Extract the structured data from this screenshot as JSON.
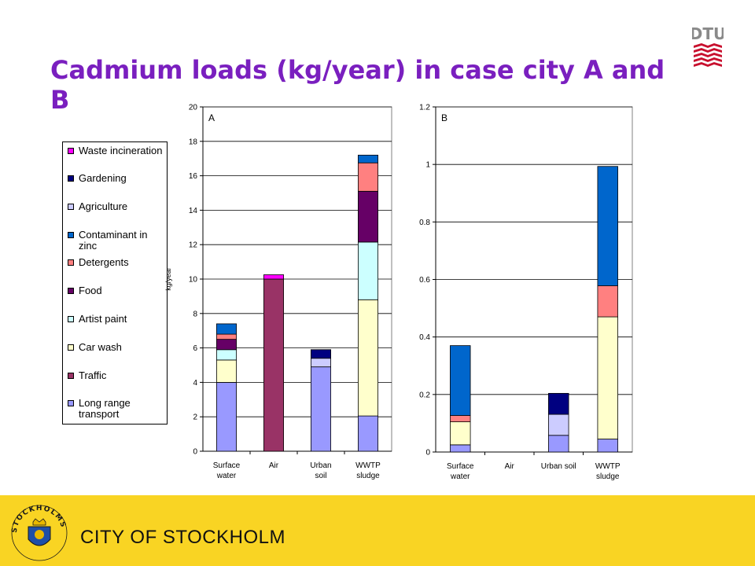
{
  "title": "Cadmium loads (kg/year) in case city A and B",
  "logo": {
    "text": "DTU",
    "color": "#c8102e"
  },
  "footer": {
    "text": "CITY OF STOCKHOLM",
    "bg": "#f9d423",
    "crest_text": "STOCKHOLMS STAD"
  },
  "legend": [
    {
      "label": "Waste incineration",
      "color": "#ff00ff"
    },
    {
      "label": "Gardening",
      "color": "#000080"
    },
    {
      "label": "Agriculture",
      "color": "#ccccff"
    },
    {
      "label": "Contaminant in zinc",
      "color": "#0066cc"
    },
    {
      "label": "Detergents",
      "color": "#ff8080"
    },
    {
      "label": "Food",
      "color": "#660066"
    },
    {
      "label": "Artist paint",
      "color": "#ccffff"
    },
    {
      "label": "Car wash",
      "color": "#ffffcc"
    },
    {
      "label": "Traffic",
      "color": "#993366"
    },
    {
      "label": "Long range transport",
      "color": "#9999ff"
    }
  ],
  "chart_data": [
    {
      "type": "bar",
      "stacked": true,
      "panel_label": "A",
      "ylabel": "kg/year",
      "ylim": [
        0,
        20
      ],
      "yticks": [
        0,
        2,
        4,
        6,
        8,
        10,
        12,
        14,
        16,
        18,
        20
      ],
      "ytick_labels": [
        "0",
        "2",
        "4",
        "6",
        "8",
        "10",
        "12",
        "14",
        "16",
        "18",
        "20"
      ],
      "grid": true,
      "categories": [
        [
          "Surface",
          "water"
        ],
        [
          "Air"
        ],
        [
          "Urban",
          "soil"
        ],
        [
          "WWTP",
          "sludge"
        ]
      ],
      "series": [
        {
          "name": "Long range transport",
          "values": [
            4.0,
            0,
            4.9,
            2.05
          ]
        },
        {
          "name": "Traffic",
          "values": [
            0,
            10.0,
            0,
            0
          ]
        },
        {
          "name": "Car wash",
          "values": [
            1.3,
            0,
            0,
            6.75
          ]
        },
        {
          "name": "Artist paint",
          "values": [
            0.6,
            0,
            0,
            3.35
          ]
        },
        {
          "name": "Food",
          "values": [
            0.6,
            0,
            0,
            2.95
          ]
        },
        {
          "name": "Detergents",
          "values": [
            0.3,
            0,
            0,
            1.65
          ]
        },
        {
          "name": "Contaminant in zinc",
          "values": [
            0.6,
            0,
            0,
            0.45
          ]
        },
        {
          "name": "Agriculture",
          "values": [
            0,
            0,
            0.5,
            0
          ]
        },
        {
          "name": "Gardening",
          "values": [
            0,
            0,
            0.5,
            0
          ]
        },
        {
          "name": "Waste incineration",
          "values": [
            0,
            0.25,
            0,
            0
          ]
        }
      ]
    },
    {
      "type": "bar",
      "stacked": true,
      "panel_label": "B",
      "ylabel": "",
      "ylim": [
        0,
        1.2
      ],
      "yticks": [
        0,
        0.2,
        0.4,
        0.6,
        0.8,
        1,
        1.2
      ],
      "ytick_labels": [
        "0",
        "0.2",
        "0.4",
        "0.6",
        "0.8",
        "1",
        "1.2"
      ],
      "grid": true,
      "categories": [
        [
          "Surface",
          "water"
        ],
        [
          "Air"
        ],
        [
          "Urban soil"
        ],
        [
          "WWTP",
          "sludge"
        ]
      ],
      "series": [
        {
          "name": "Long range transport",
          "values": [
            0.025,
            0,
            0.058,
            0.045
          ]
        },
        {
          "name": "Traffic",
          "values": [
            0,
            0,
            0,
            0
          ]
        },
        {
          "name": "Car wash",
          "values": [
            0.08,
            0,
            0,
            0.425
          ]
        },
        {
          "name": "Artist paint",
          "values": [
            0,
            0,
            0,
            0
          ]
        },
        {
          "name": "Food",
          "values": [
            0,
            0,
            0,
            0
          ]
        },
        {
          "name": "Detergents",
          "values": [
            0.022,
            0,
            0,
            0.108
          ]
        },
        {
          "name": "Contaminant in zinc",
          "values": [
            0.243,
            0,
            0,
            0.415
          ]
        },
        {
          "name": "Agriculture",
          "values": [
            0,
            0,
            0.073,
            0
          ]
        },
        {
          "name": "Gardening",
          "values": [
            0,
            0,
            0.073,
            0
          ]
        },
        {
          "name": "Waste incineration",
          "values": [
            0,
            0,
            0,
            0
          ]
        }
      ]
    }
  ]
}
